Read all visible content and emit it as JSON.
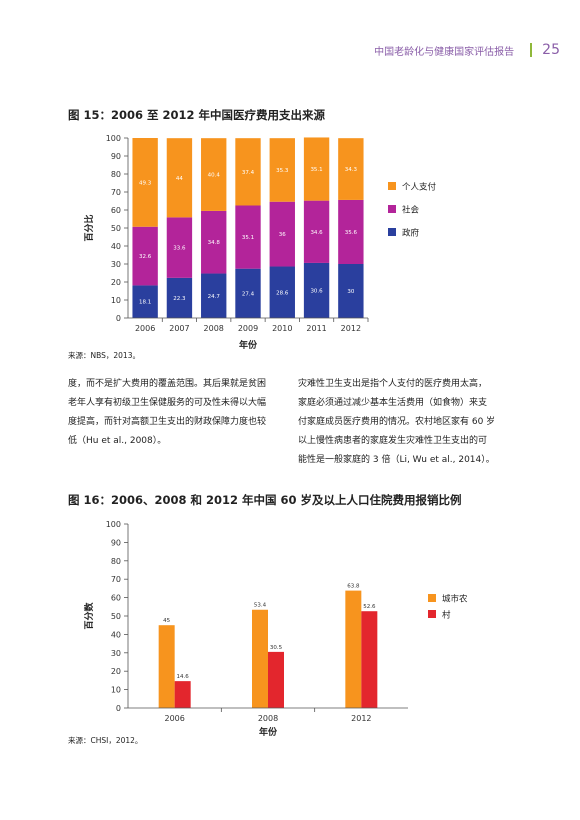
{
  "header": {
    "title": "中国老龄化与健康国家评估报告",
    "page": "25"
  },
  "figure15": {
    "title": "图 15：2006 至 2012 年中国医疗费用支出来源",
    "source": "来源：NBS，2013。",
    "chart_data": {
      "type": "bar",
      "stacked": true,
      "categories": [
        "2006",
        "2007",
        "2008",
        "2009",
        "2010",
        "2011",
        "2012"
      ],
      "series": [
        {
          "name": "政府",
          "color": "#2a3f9e",
          "values": [
            18.1,
            22.3,
            24.7,
            27.4,
            28.6,
            30.6,
            30
          ]
        },
        {
          "name": "社会",
          "color": "#b3249a",
          "values": [
            32.6,
            33.6,
            34.8,
            35.1,
            36,
            34.6,
            35.6
          ]
        },
        {
          "name": "个人支付",
          "color": "#f7941e",
          "values": [
            49.3,
            44,
            40.4,
            37.4,
            35.3,
            35.1,
            34.3
          ]
        }
      ],
      "legend_order": [
        "个人支付",
        "社会",
        "政府"
      ],
      "legend_position": "right",
      "ylabel": "百分比",
      "xlabel": "年份",
      "ylim": [
        0,
        100
      ],
      "yticks": [
        0,
        10,
        20,
        30,
        40,
        50,
        60,
        70,
        80,
        90,
        100
      ],
      "grid": false
    }
  },
  "body": {
    "left": [
      "度，而不是扩大费用的覆盖范围。其后果就是贫困",
      "老年人享有初级卫生保健服务的可及性未得以大幅",
      "度提高，而针对高额卫生支出的财政保障力度也较",
      "低（Hu et al., 2008）。"
    ],
    "right": [
      "灾难性卫生支出是指个人支付的医疗费用太高，",
      "家庭必须通过减少基本生活费用（如食物）来支",
      "付家庭成员医疗费用的情况。农村地区家有 60 岁",
      "以上慢性病患者的家庭发生灾难性卫生支出的可",
      "能性是一般家庭的 3 倍（Li, Wu et al., 2014）。"
    ]
  },
  "figure16": {
    "title": "图 16：2006、2008 和 2012 年中国 60 岁及以上人口住院费用报销比例",
    "source": "来源：CHSI，2012。",
    "chart_data": {
      "type": "bar",
      "categories": [
        "2006",
        "2008",
        "2012"
      ],
      "series": [
        {
          "name": "城市农",
          "color": "#f7941e",
          "values": [
            45,
            53.4,
            63.8
          ]
        },
        {
          "name": "村",
          "color": "#e3262d",
          "values": [
            14.6,
            30.5,
            52.6
          ]
        }
      ],
      "legend_position": "right",
      "ylabel": "百分数",
      "xlabel": "年份",
      "ylim": [
        0,
        100
      ],
      "yticks": [
        0,
        10,
        20,
        30,
        40,
        50,
        60,
        70,
        80,
        90,
        100
      ],
      "grid": false
    }
  }
}
